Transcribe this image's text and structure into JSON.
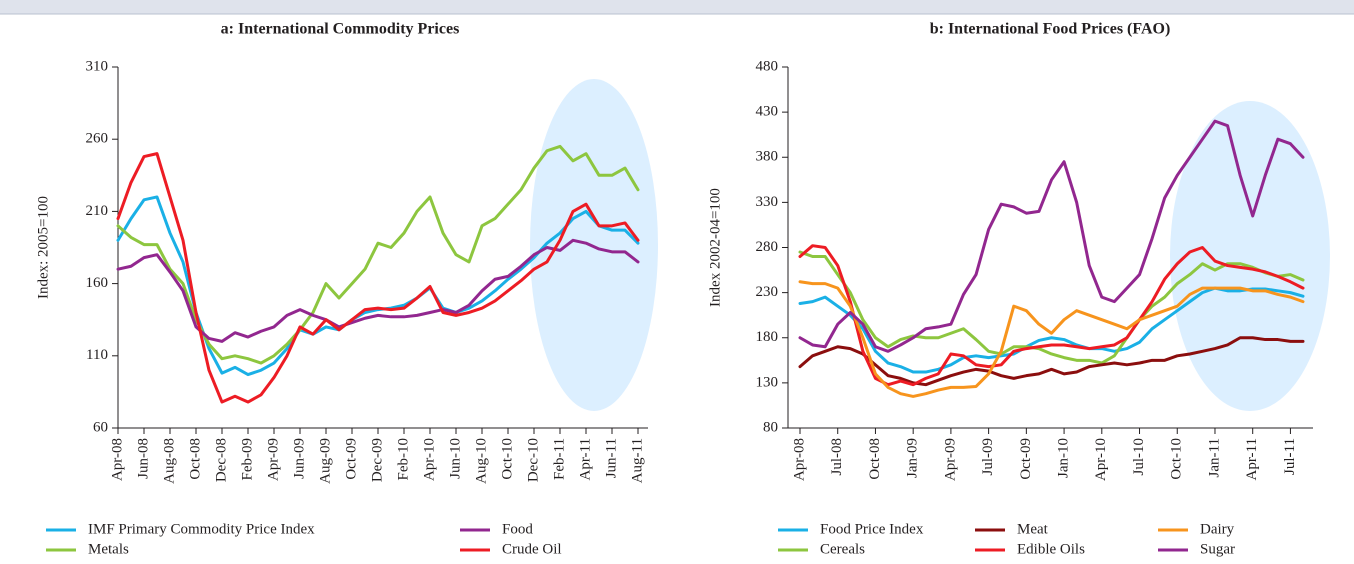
{
  "chart_data": [
    {
      "type": "line",
      "title": "a: International Commodity Prices",
      "y_label": "Index: 2005=100",
      "categories": [
        "Apr-08",
        null,
        "Jun-08",
        null,
        "Aug-08",
        null,
        "Oct-08",
        null,
        "Dec-08",
        null,
        "Feb-09",
        null,
        "Apr-09",
        null,
        "Jun-09",
        null,
        "Aug-09",
        null,
        "Oct-09",
        null,
        "Dec-09",
        null,
        "Feb-10",
        null,
        "Apr-10",
        null,
        "Jun-10",
        null,
        "Aug-10",
        null,
        "Oct-10",
        null,
        "Dec-10",
        null,
        "Feb-11",
        null,
        "Apr-11",
        null,
        "Jun-11",
        null,
        "Aug-11"
      ],
      "ylim": [
        60,
        310
      ],
      "yticks": [
        60,
        110,
        160,
        210,
        260,
        310
      ],
      "series": [
        {
          "name": "IMF Primary Commodity Price Index",
          "color": "#1ab0e6",
          "values": [
            190,
            205,
            218,
            220,
            195,
            175,
            140,
            115,
            98,
            102,
            97,
            100,
            105,
            115,
            128,
            125,
            130,
            128,
            135,
            140,
            142,
            143,
            145,
            150,
            157,
            143,
            140,
            143,
            148,
            155,
            163,
            170,
            178,
            188,
            195,
            205,
            210,
            200,
            197,
            197,
            188
          ]
        },
        {
          "name": "Metals",
          "color": "#8dc63f",
          "values": [
            200,
            192,
            187,
            187,
            170,
            160,
            135,
            118,
            108,
            110,
            108,
            105,
            110,
            118,
            128,
            140,
            160,
            150,
            160,
            170,
            188,
            185,
            195,
            210,
            220,
            195,
            180,
            175,
            200,
            205,
            215,
            225,
            240,
            252,
            255,
            245,
            250,
            235,
            235,
            240,
            225
          ]
        },
        {
          "name": "Food",
          "color": "#92278f",
          "values": [
            170,
            172,
            178,
            180,
            168,
            155,
            130,
            122,
            120,
            126,
            123,
            127,
            130,
            138,
            142,
            138,
            135,
            130,
            133,
            136,
            138,
            137,
            137,
            138,
            140,
            142,
            140,
            145,
            155,
            163,
            165,
            172,
            180,
            185,
            183,
            190,
            188,
            184,
            182,
            182,
            175
          ]
        },
        {
          "name": "Crude Oil",
          "color": "#ed1c24",
          "values": [
            205,
            230,
            248,
            250,
            220,
            190,
            140,
            100,
            78,
            82,
            78,
            83,
            95,
            110,
            130,
            125,
            135,
            128,
            135,
            142,
            143,
            142,
            143,
            150,
            158,
            140,
            138,
            140,
            143,
            148,
            155,
            162,
            170,
            175,
            190,
            210,
            215,
            200,
            200,
            202,
            190
          ]
        }
      ]
    },
    {
      "type": "line",
      "title": "b: International Food Prices (FAO)",
      "y_label": "Index 2002-04=100",
      "categories": [
        "Apr-08",
        null,
        null,
        "Jul-08",
        null,
        null,
        "Oct-08",
        null,
        null,
        "Jan-09",
        null,
        null,
        "Apr-09",
        null,
        null,
        "Jul-09",
        null,
        null,
        "Oct-09",
        null,
        null,
        "Jan-10",
        null,
        null,
        "Apr-10",
        null,
        null,
        "Jul-10",
        null,
        null,
        "Oct-10",
        null,
        null,
        "Jan-11",
        null,
        null,
        "Apr-11",
        null,
        null,
        "Jul-11",
        null
      ],
      "ylim": [
        80,
        480
      ],
      "yticks": [
        80,
        130,
        180,
        230,
        280,
        330,
        380,
        430,
        480
      ],
      "series": [
        {
          "name": "Food Price Index",
          "color": "#1ab0e6",
          "values": [
            218,
            220,
            225,
            215,
            205,
            190,
            165,
            152,
            148,
            142,
            142,
            145,
            150,
            158,
            160,
            158,
            160,
            162,
            170,
            177,
            180,
            178,
            172,
            168,
            168,
            165,
            168,
            175,
            190,
            200,
            210,
            220,
            230,
            235,
            232,
            232,
            234,
            234,
            232,
            230,
            226
          ]
        },
        {
          "name": "Cereals",
          "color": "#8dc63f",
          "values": [
            275,
            270,
            270,
            250,
            230,
            200,
            180,
            170,
            178,
            182,
            180,
            180,
            185,
            190,
            178,
            165,
            162,
            170,
            170,
            168,
            162,
            158,
            155,
            155,
            152,
            160,
            180,
            200,
            215,
            225,
            240,
            250,
            262,
            255,
            262,
            262,
            258,
            252,
            248,
            250,
            244
          ]
        },
        {
          "name": "Meat",
          "color": "#8b0e0e",
          "values": [
            148,
            160,
            165,
            170,
            168,
            162,
            150,
            138,
            135,
            130,
            128,
            133,
            138,
            142,
            145,
            143,
            138,
            135,
            138,
            140,
            145,
            140,
            142,
            148,
            150,
            152,
            150,
            152,
            155,
            155,
            160,
            162,
            165,
            168,
            172,
            180,
            180,
            178,
            178,
            176,
            176
          ]
        },
        {
          "name": "Edible Oils",
          "color": "#ed1c24",
          "values": [
            270,
            282,
            280,
            260,
            220,
            165,
            135,
            128,
            132,
            128,
            135,
            140,
            162,
            160,
            150,
            148,
            150,
            165,
            168,
            170,
            172,
            172,
            170,
            168,
            170,
            172,
            180,
            200,
            220,
            245,
            262,
            275,
            280,
            265,
            260,
            258,
            256,
            253,
            248,
            242,
            235
          ]
        },
        {
          "name": "Dairy",
          "color": "#f7941d",
          "values": [
            242,
            240,
            240,
            235,
            215,
            180,
            140,
            125,
            118,
            115,
            118,
            122,
            125,
            125,
            126,
            140,
            165,
            215,
            210,
            195,
            185,
            200,
            210,
            205,
            200,
            195,
            190,
            200,
            205,
            210,
            215,
            228,
            235,
            235,
            235,
            235,
            232,
            232,
            228,
            225,
            220
          ]
        },
        {
          "name": "Sugar",
          "color": "#92278f",
          "values": [
            180,
            172,
            170,
            195,
            208,
            195,
            170,
            165,
            172,
            180,
            190,
            192,
            195,
            228,
            250,
            300,
            328,
            325,
            318,
            320,
            355,
            375,
            330,
            260,
            225,
            220,
            235,
            250,
            290,
            335,
            360,
            380,
            400,
            420,
            415,
            360,
            315,
            360,
            400,
            395,
            380
          ]
        }
      ]
    }
  ]
}
